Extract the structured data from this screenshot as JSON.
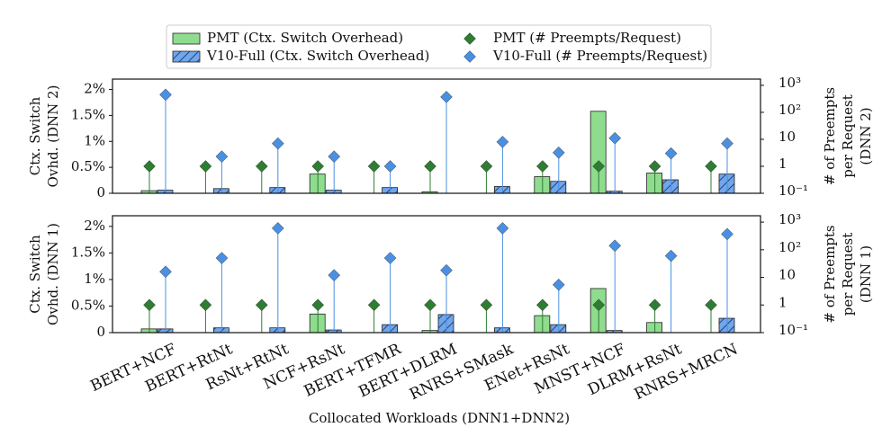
{
  "chart_data": [
    {
      "type": "bar",
      "ylabel": [
        "Ctx. Switch",
        "Ovhd. (DNN 2)"
      ],
      "y2label": [
        "# of Preempts",
        "per Request",
        "(DNN 2)"
      ],
      "ylim": [
        0,
        2.2
      ],
      "yticks": [
        0,
        {
          "value": 0.5,
          "label": "0.5%"
        },
        {
          "value": 1,
          "label": "1%"
        },
        {
          "value": 1.5,
          "label": "1.5%"
        },
        {
          "value": 2,
          "label": "2%"
        }
      ],
      "y2lim": [
        0.1,
        1700
      ],
      "y2scale": "log",
      "y2ticks": [
        {
          "value": 0.1,
          "label": "10⁻¹"
        },
        1,
        10,
        {
          "value": 100,
          "label": "10²"
        },
        {
          "value": 1000,
          "label": "10³"
        }
      ],
      "series": [
        {
          "name": "PMT (Ctx. Switch Overhead)",
          "kind": "bar",
          "color": "#8fdc8f",
          "values": [
            0.05,
            0,
            0,
            0.37,
            0,
            0.03,
            0,
            0.32,
            1.58,
            0.39,
            0
          ]
        },
        {
          "name": "V10-Full (Ctx. Switch Overhead)",
          "kind": "bar",
          "color": "#6fa6ee",
          "hatch": true,
          "values": [
            0.06,
            0.09,
            0.11,
            0.06,
            0.11,
            0,
            0.13,
            0.23,
            0.04,
            0.26,
            0.37
          ]
        },
        {
          "name": "PMT (# Preempts/Request)",
          "kind": "lollipop",
          "axis": "y2",
          "color": "#2e7d32",
          "values": [
            1,
            1,
            1,
            1,
            1,
            1,
            1,
            1,
            1,
            1,
            1
          ]
        },
        {
          "name": "V10-Full (# Preempts/Request)",
          "kind": "lollipop",
          "axis": "y2",
          "color": "#4a90e2",
          "values": [
            450,
            2.3,
            7,
            2.3,
            1,
            370,
            8,
            3.2,
            11,
            3,
            7
          ]
        }
      ]
    },
    {
      "type": "bar",
      "ylabel": [
        "Ctx. Switch",
        "Ovhd. (DNN 1)"
      ],
      "y2label": [
        "# of Preempts",
        "per Request",
        "(DNN 1)"
      ],
      "xlabel": "Collocated Workloads (DNN1+DNN2)",
      "categories": [
        "BERT+NCF",
        "BERT+RtNt",
        "RsNt+RtNt",
        "NCF+RsNt",
        "BERT+TFMR",
        "BERT+DLRM",
        "RNRS+SMask",
        "ENet+RsNt",
        "MNST+NCF",
        "DLRM+RsNt",
        "RNRS+MRCN"
      ],
      "ylim": [
        0,
        2.2
      ],
      "yticks": [
        0,
        {
          "value": 0.5,
          "label": "0.5%"
        },
        {
          "value": 1,
          "label": "1%"
        },
        {
          "value": 1.5,
          "label": "1.5%"
        },
        {
          "value": 2,
          "label": "2%"
        }
      ],
      "y2lim": [
        0.1,
        1700
      ],
      "y2scale": "log",
      "y2ticks": [
        {
          "value": 0.1,
          "label": "10⁻¹"
        },
        1,
        10,
        {
          "value": 100,
          "label": "10²"
        },
        {
          "value": 1000,
          "label": "10³"
        }
      ],
      "series": [
        {
          "kind": "bar",
          "color": "#8fdc8f",
          "values": [
            0.07,
            0,
            0,
            0.35,
            0,
            0.04,
            0,
            0.32,
            0.83,
            0.19,
            0
          ]
        },
        {
          "kind": "bar",
          "color": "#6fa6ee",
          "hatch": true,
          "values": [
            0.07,
            0.09,
            0.09,
            0.05,
            0.15,
            0.34,
            0.09,
            0.15,
            0.04,
            0,
            0.27
          ]
        },
        {
          "kind": "lollipop",
          "axis": "y2",
          "color": "#2e7d32",
          "values": [
            1,
            1,
            1,
            1,
            1,
            1,
            1,
            1,
            1,
            1,
            1
          ]
        },
        {
          "kind": "lollipop",
          "axis": "y2",
          "color": "#4a90e2",
          "values": [
            16,
            50,
            600,
            12,
            50,
            18,
            600,
            5.4,
            140,
            60,
            370
          ]
        }
      ]
    }
  ]
}
